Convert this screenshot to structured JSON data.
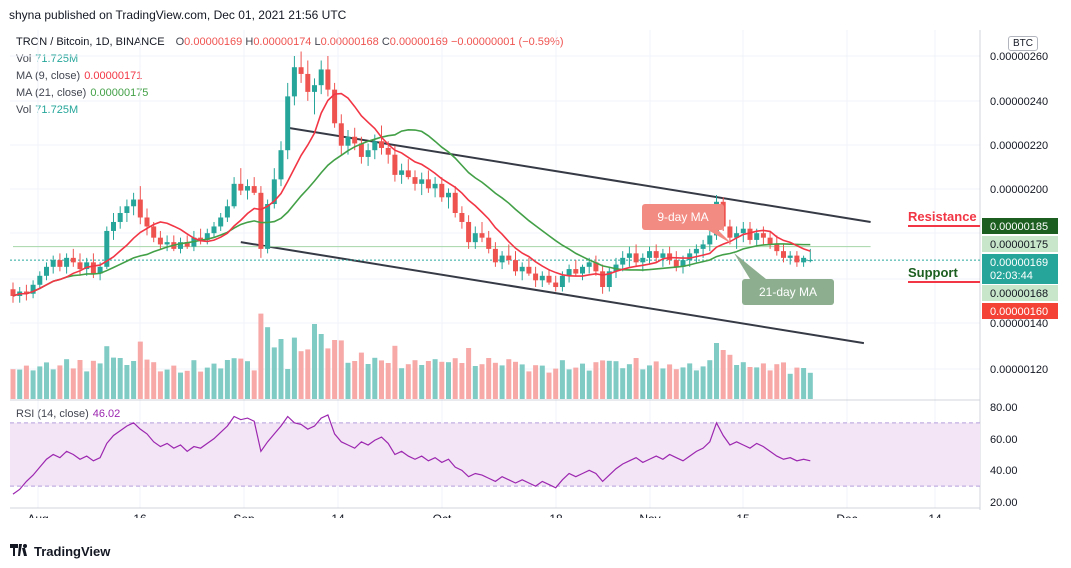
{
  "header": {
    "published": "shyna published on TradingView.com, Dec 01, 2021 21:56 UTC"
  },
  "legend": {
    "symbol": "TRON / Bitcoin, 1D, BINANCE",
    "ohlc": {
      "o_label": "O",
      "o": "0.00000169",
      "h_label": "H",
      "h": "0.00000174",
      "l_label": "L",
      "l": "0.00000168",
      "c_label": "C",
      "c": "0.00000169",
      "change": "−0.00000001 (−0.59%)"
    },
    "vol_label": "Vol",
    "vol": "71.725M",
    "ma9_label": "MA (9, close)",
    "ma9": "0.00000171",
    "ma21_label": "MA (21, close)",
    "ma21": "0.00000175",
    "vol2_label": "Vol",
    "vol2": "71.725M",
    "rsi_label": "RSI (14, close)",
    "rsi": "46.02"
  },
  "currency_box": "BTC",
  "colors": {
    "up": "#26a69a",
    "down": "#ef5350",
    "ma9": "#f23645",
    "ma21": "#43a047",
    "rsi": "#9c27b0",
    "rsi_band": "#f3e5f5",
    "trend": "#363a45",
    "badge_green": "#1b5e20",
    "badge_red": "#f44336",
    "badge_dark": "#2a2e39"
  },
  "chart_data": {
    "type": "candlestick",
    "price_axis": {
      "ylim": [
        1.1e-06,
        2.7e-06
      ],
      "ticks": [
        "0.00000260",
        "0.00000240",
        "0.00000220",
        "0.00000200",
        "0.00000140",
        "0.00000120"
      ]
    },
    "badges": [
      {
        "label": "0.00000185",
        "price": 1.85e-06,
        "color": "#1b5e20",
        "text": "#ffffff"
      },
      {
        "label": "0.00000175",
        "price": 1.75e-06,
        "color": "#c8e6c9",
        "text": "#131722"
      },
      {
        "label": "0.00000169",
        "sub": "02:03:44",
        "price": 1.69e-06,
        "color": "#26a69a",
        "text": "#ffffff"
      },
      {
        "label": "0.00000168",
        "price": 1.64e-06,
        "color": "#c8e6c9",
        "text": "#131722"
      },
      {
        "label": "0.00000160",
        "price": 1.6e-06,
        "color": "#f44336",
        "text": "#ffffff"
      }
    ],
    "x_labels": [
      {
        "label": "Aug",
        "i": 2
      },
      {
        "label": "16",
        "i": 17
      },
      {
        "label": "Sep",
        "i": 33
      },
      {
        "label": "14",
        "i": 46
      },
      {
        "label": "Oct",
        "i": 63
      },
      {
        "label": "18",
        "i": 80
      },
      {
        "label": "Nov",
        "i": 94
      },
      {
        "label": "15",
        "i": 108
      },
      {
        "label": "Dec",
        "i": 123
      },
      {
        "label": "14",
        "i": 136
      }
    ],
    "candles": [
      [
        1.56,
        1.59,
        1.5,
        1.53
      ],
      [
        1.53,
        1.57,
        1.5,
        1.55
      ],
      [
        1.55,
        1.58,
        1.51,
        1.54
      ],
      [
        1.54,
        1.6,
        1.52,
        1.58
      ],
      [
        1.58,
        1.64,
        1.56,
        1.62
      ],
      [
        1.62,
        1.68,
        1.6,
        1.66
      ],
      [
        1.66,
        1.71,
        1.63,
        1.69
      ],
      [
        1.69,
        1.72,
        1.64,
        1.66
      ],
      [
        1.66,
        1.72,
        1.63,
        1.7
      ],
      [
        1.7,
        1.74,
        1.66,
        1.68
      ],
      [
        1.68,
        1.72,
        1.62,
        1.65
      ],
      [
        1.65,
        1.7,
        1.62,
        1.68
      ],
      [
        1.68,
        1.72,
        1.61,
        1.63
      ],
      [
        1.63,
        1.68,
        1.6,
        1.66
      ],
      [
        1.66,
        1.84,
        1.65,
        1.82
      ],
      [
        1.82,
        1.9,
        1.78,
        1.86
      ],
      [
        1.86,
        1.93,
        1.83,
        1.9
      ],
      [
        1.9,
        1.96,
        1.86,
        1.93
      ],
      [
        1.93,
        1.99,
        1.89,
        1.96
      ],
      [
        1.96,
        2.02,
        1.85,
        1.88
      ],
      [
        1.88,
        1.92,
        1.8,
        1.84
      ],
      [
        1.84,
        1.86,
        1.77,
        1.79
      ],
      [
        1.79,
        1.82,
        1.74,
        1.76
      ],
      [
        1.76,
        1.8,
        1.73,
        1.77
      ],
      [
        1.77,
        1.8,
        1.73,
        1.74
      ],
      [
        1.74,
        1.79,
        1.72,
        1.77
      ],
      [
        1.77,
        1.8,
        1.74,
        1.75
      ],
      [
        1.75,
        1.82,
        1.73,
        1.79
      ],
      [
        1.79,
        1.83,
        1.76,
        1.78
      ],
      [
        1.78,
        1.83,
        1.76,
        1.81
      ],
      [
        1.81,
        1.86,
        1.79,
        1.84
      ],
      [
        1.84,
        1.9,
        1.82,
        1.88
      ],
      [
        1.88,
        1.96,
        1.86,
        1.93
      ],
      [
        1.93,
        2.06,
        1.92,
        2.03
      ],
      [
        2.03,
        2.1,
        1.98,
        2.0
      ],
      [
        2.0,
        2.05,
        1.96,
        2.02
      ],
      [
        2.02,
        2.06,
        1.98,
        1.99
      ],
      [
        1.99,
        2.02,
        1.7,
        1.74
      ],
      [
        1.74,
        1.96,
        1.72,
        1.94
      ],
      [
        1.94,
        2.1,
        1.92,
        2.05
      ],
      [
        2.05,
        2.22,
        2.02,
        2.18
      ],
      [
        2.18,
        2.48,
        2.14,
        2.42
      ],
      [
        2.42,
        2.6,
        2.38,
        2.55
      ],
      [
        2.55,
        2.62,
        2.48,
        2.52
      ],
      [
        2.52,
        2.58,
        2.4,
        2.44
      ],
      [
        2.44,
        2.5,
        2.34,
        2.47
      ],
      [
        2.47,
        2.58,
        2.43,
        2.54
      ],
      [
        2.54,
        2.6,
        2.42,
        2.45
      ],
      [
        2.45,
        2.48,
        2.28,
        2.3
      ],
      [
        2.3,
        2.34,
        2.16,
        2.2
      ],
      [
        2.2,
        2.27,
        2.16,
        2.24
      ],
      [
        2.24,
        2.28,
        2.18,
        2.21
      ],
      [
        2.21,
        2.24,
        2.12,
        2.15
      ],
      [
        2.15,
        2.21,
        2.11,
        2.18
      ],
      [
        2.18,
        2.25,
        2.14,
        2.22
      ],
      [
        2.22,
        2.29,
        2.16,
        2.19
      ],
      [
        2.19,
        2.22,
        2.12,
        2.16
      ],
      [
        2.16,
        2.2,
        2.04,
        2.07
      ],
      [
        2.07,
        2.12,
        2.03,
        2.09
      ],
      [
        2.09,
        2.14,
        2.05,
        2.06
      ],
      [
        2.06,
        2.09,
        2.0,
        2.03
      ],
      [
        2.03,
        2.08,
        1.98,
        2.05
      ],
      [
        2.05,
        2.09,
        1.99,
        2.01
      ],
      [
        2.01,
        2.06,
        1.97,
        2.03
      ],
      [
        2.03,
        2.06,
        1.95,
        1.97
      ],
      [
        1.97,
        2.01,
        1.92,
        1.99
      ],
      [
        1.99,
        2.02,
        1.88,
        1.9
      ],
      [
        1.9,
        1.93,
        1.83,
        1.86
      ],
      [
        1.86,
        1.89,
        1.74,
        1.77
      ],
      [
        1.77,
        1.84,
        1.74,
        1.81
      ],
      [
        1.81,
        1.86,
        1.77,
        1.79
      ],
      [
        1.79,
        1.82,
        1.72,
        1.74
      ],
      [
        1.74,
        1.77,
        1.66,
        1.68
      ],
      [
        1.68,
        1.73,
        1.65,
        1.71
      ],
      [
        1.71,
        1.76,
        1.67,
        1.69
      ],
      [
        1.69,
        1.73,
        1.62,
        1.64
      ],
      [
        1.64,
        1.68,
        1.6,
        1.66
      ],
      [
        1.66,
        1.7,
        1.62,
        1.63
      ],
      [
        1.63,
        1.66,
        1.57,
        1.6
      ],
      [
        1.6,
        1.64,
        1.57,
        1.62
      ],
      [
        1.62,
        1.65,
        1.58,
        1.59
      ],
      [
        1.59,
        1.62,
        1.55,
        1.57
      ],
      [
        1.57,
        1.64,
        1.55,
        1.62
      ],
      [
        1.62,
        1.67,
        1.59,
        1.65
      ],
      [
        1.65,
        1.69,
        1.62,
        1.63
      ],
      [
        1.63,
        1.67,
        1.6,
        1.66
      ],
      [
        1.66,
        1.7,
        1.63,
        1.68
      ],
      [
        1.68,
        1.71,
        1.62,
        1.64
      ],
      [
        1.64,
        1.67,
        1.54,
        1.57
      ],
      [
        1.57,
        1.66,
        1.55,
        1.64
      ],
      [
        1.64,
        1.7,
        1.61,
        1.67
      ],
      [
        1.67,
        1.73,
        1.64,
        1.7
      ],
      [
        1.7,
        1.75,
        1.66,
        1.72
      ],
      [
        1.72,
        1.76,
        1.66,
        1.68
      ],
      [
        1.68,
        1.72,
        1.64,
        1.7
      ],
      [
        1.7,
        1.75,
        1.67,
        1.73
      ],
      [
        1.73,
        1.76,
        1.68,
        1.7
      ],
      [
        1.7,
        1.74,
        1.66,
        1.72
      ],
      [
        1.72,
        1.75,
        1.67,
        1.69
      ],
      [
        1.69,
        1.73,
        1.64,
        1.66
      ],
      [
        1.66,
        1.71,
        1.63,
        1.69
      ],
      [
        1.69,
        1.74,
        1.66,
        1.72
      ],
      [
        1.72,
        1.76,
        1.68,
        1.74
      ],
      [
        1.74,
        1.78,
        1.7,
        1.76
      ],
      [
        1.76,
        1.82,
        1.73,
        1.8
      ],
      [
        1.8,
        1.98,
        1.78,
        1.95
      ],
      [
        1.95,
        1.97,
        1.82,
        1.84
      ],
      [
        1.84,
        1.87,
        1.76,
        1.79
      ],
      [
        1.79,
        1.84,
        1.74,
        1.81
      ],
      [
        1.81,
        1.86,
        1.77,
        1.83
      ],
      [
        1.83,
        1.86,
        1.76,
        1.78
      ],
      [
        1.78,
        1.83,
        1.75,
        1.81
      ],
      [
        1.81,
        1.84,
        1.76,
        1.79
      ],
      [
        1.79,
        1.82,
        1.74,
        1.76
      ],
      [
        1.76,
        1.8,
        1.71,
        1.73
      ],
      [
        1.73,
        1.76,
        1.68,
        1.7
      ],
      [
        1.7,
        1.73,
        1.67,
        1.71
      ],
      [
        1.71,
        1.73,
        1.66,
        1.68
      ],
      [
        1.68,
        1.71,
        1.66,
        1.7
      ],
      [
        1.69,
        1.74,
        1.68,
        1.69
      ]
    ],
    "volumes": [],
    "series": [
      {
        "name": "MA (9, close)",
        "values": []
      },
      {
        "name": "MA (21, close)",
        "values": []
      }
    ],
    "trendlines": [
      {
        "from": [
          41,
          2.28
        ],
        "to": [
          128,
          1.86
        ]
      },
      {
        "from": [
          34,
          1.77
        ],
        "to": [
          127,
          1.32
        ]
      },
      {
        "from": [
          0,
          1.75
        ],
        "to": [
          128,
          1.75
        ],
        "style": "light"
      }
    ],
    "levels": [
      {
        "label": "Resistance",
        "price": 1.85,
        "color": "#f23645"
      },
      {
        "label": "Support",
        "price": 1.64,
        "color": "#f23645"
      }
    ],
    "callouts": [
      {
        "label": "9-day MA",
        "at": [
          111,
          1.88
        ],
        "color": "#f28b82",
        "text": "#ffffff"
      },
      {
        "label": "21-day MA",
        "at": [
          120,
          1.62
        ],
        "color": "#8daf8f",
        "text": "#ffffff"
      }
    ],
    "rsi": {
      "ticks": [
        "80.00",
        "60.00",
        "40.00",
        "20.00"
      ],
      "band": [
        30,
        70
      ],
      "values": [
        25,
        28,
        33,
        37,
        42,
        47,
        50,
        48,
        52,
        50,
        47,
        49,
        46,
        48,
        57,
        62,
        65,
        68,
        70,
        66,
        63,
        58,
        55,
        57,
        54,
        56,
        52,
        55,
        54,
        57,
        60,
        64,
        68,
        74,
        72,
        73,
        71,
        52,
        58,
        63,
        68,
        74,
        70,
        69,
        66,
        68,
        73,
        75,
        63,
        58,
        56,
        54,
        58,
        56,
        59,
        61,
        57,
        50,
        52,
        49,
        47,
        49,
        46,
        48,
        45,
        47,
        42,
        40,
        36,
        38,
        37,
        35,
        33,
        36,
        34,
        32,
        34,
        32,
        30,
        33,
        31,
        29,
        34,
        38,
        36,
        38,
        40,
        38,
        33,
        37,
        41,
        44,
        46,
        48,
        45,
        47,
        49,
        47,
        50,
        48,
        46,
        49,
        52,
        54,
        58,
        70,
        62,
        56,
        58,
        56,
        54,
        57,
        55,
        52,
        49,
        47,
        48,
        46,
        47,
        46
      ]
    }
  },
  "footer": {
    "brand": "TradingView"
  }
}
